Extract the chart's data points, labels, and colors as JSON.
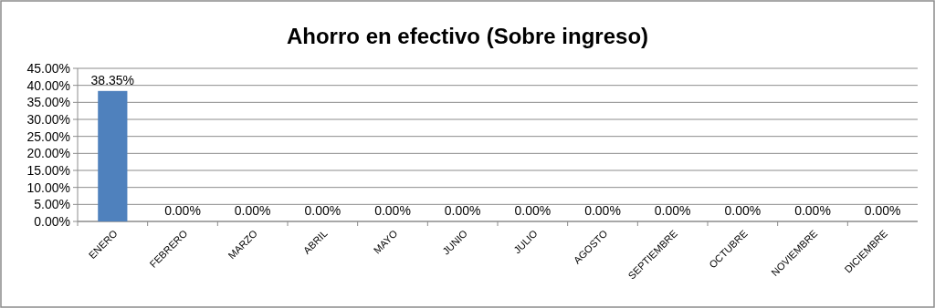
{
  "chart_data": {
    "type": "bar",
    "title": "Ahorro en efectivo (Sobre ingreso)",
    "categories": [
      "ENERO",
      "FEBRERO",
      "MARZO",
      "ABRIL",
      "MAYO",
      "JUNIO",
      "JULIO",
      "AGOSTO",
      "SEPTIEMBRE",
      "OCTUBRE",
      "NOVIEMBRE",
      "DICIEMBRE"
    ],
    "values": [
      38.35,
      0,
      0,
      0,
      0,
      0,
      0,
      0,
      0,
      0,
      0,
      0
    ],
    "value_labels": [
      "38.35%",
      "0.00%",
      "0.00%",
      "0.00%",
      "0.00%",
      "0.00%",
      "0.00%",
      "0.00%",
      "0.00%",
      "0.00%",
      "0.00%",
      "0.00%"
    ],
    "color": "#4f81bd",
    "ylim": [
      0,
      45
    ],
    "yticks": [
      {
        "value": 0,
        "label": "0.00%"
      },
      {
        "value": 5,
        "label": "5.00%"
      },
      {
        "value": 10,
        "label": "10.00%"
      },
      {
        "value": 15,
        "label": "15.00%"
      },
      {
        "value": 20,
        "label": "20.00%"
      },
      {
        "value": 25,
        "label": "25.00%"
      },
      {
        "value": 30,
        "label": "30.00%"
      },
      {
        "value": 35,
        "label": "35.00%"
      },
      {
        "value": 40,
        "label": "40.00%"
      },
      {
        "value": 45,
        "label": "45.00%"
      }
    ],
    "grid": "y"
  }
}
